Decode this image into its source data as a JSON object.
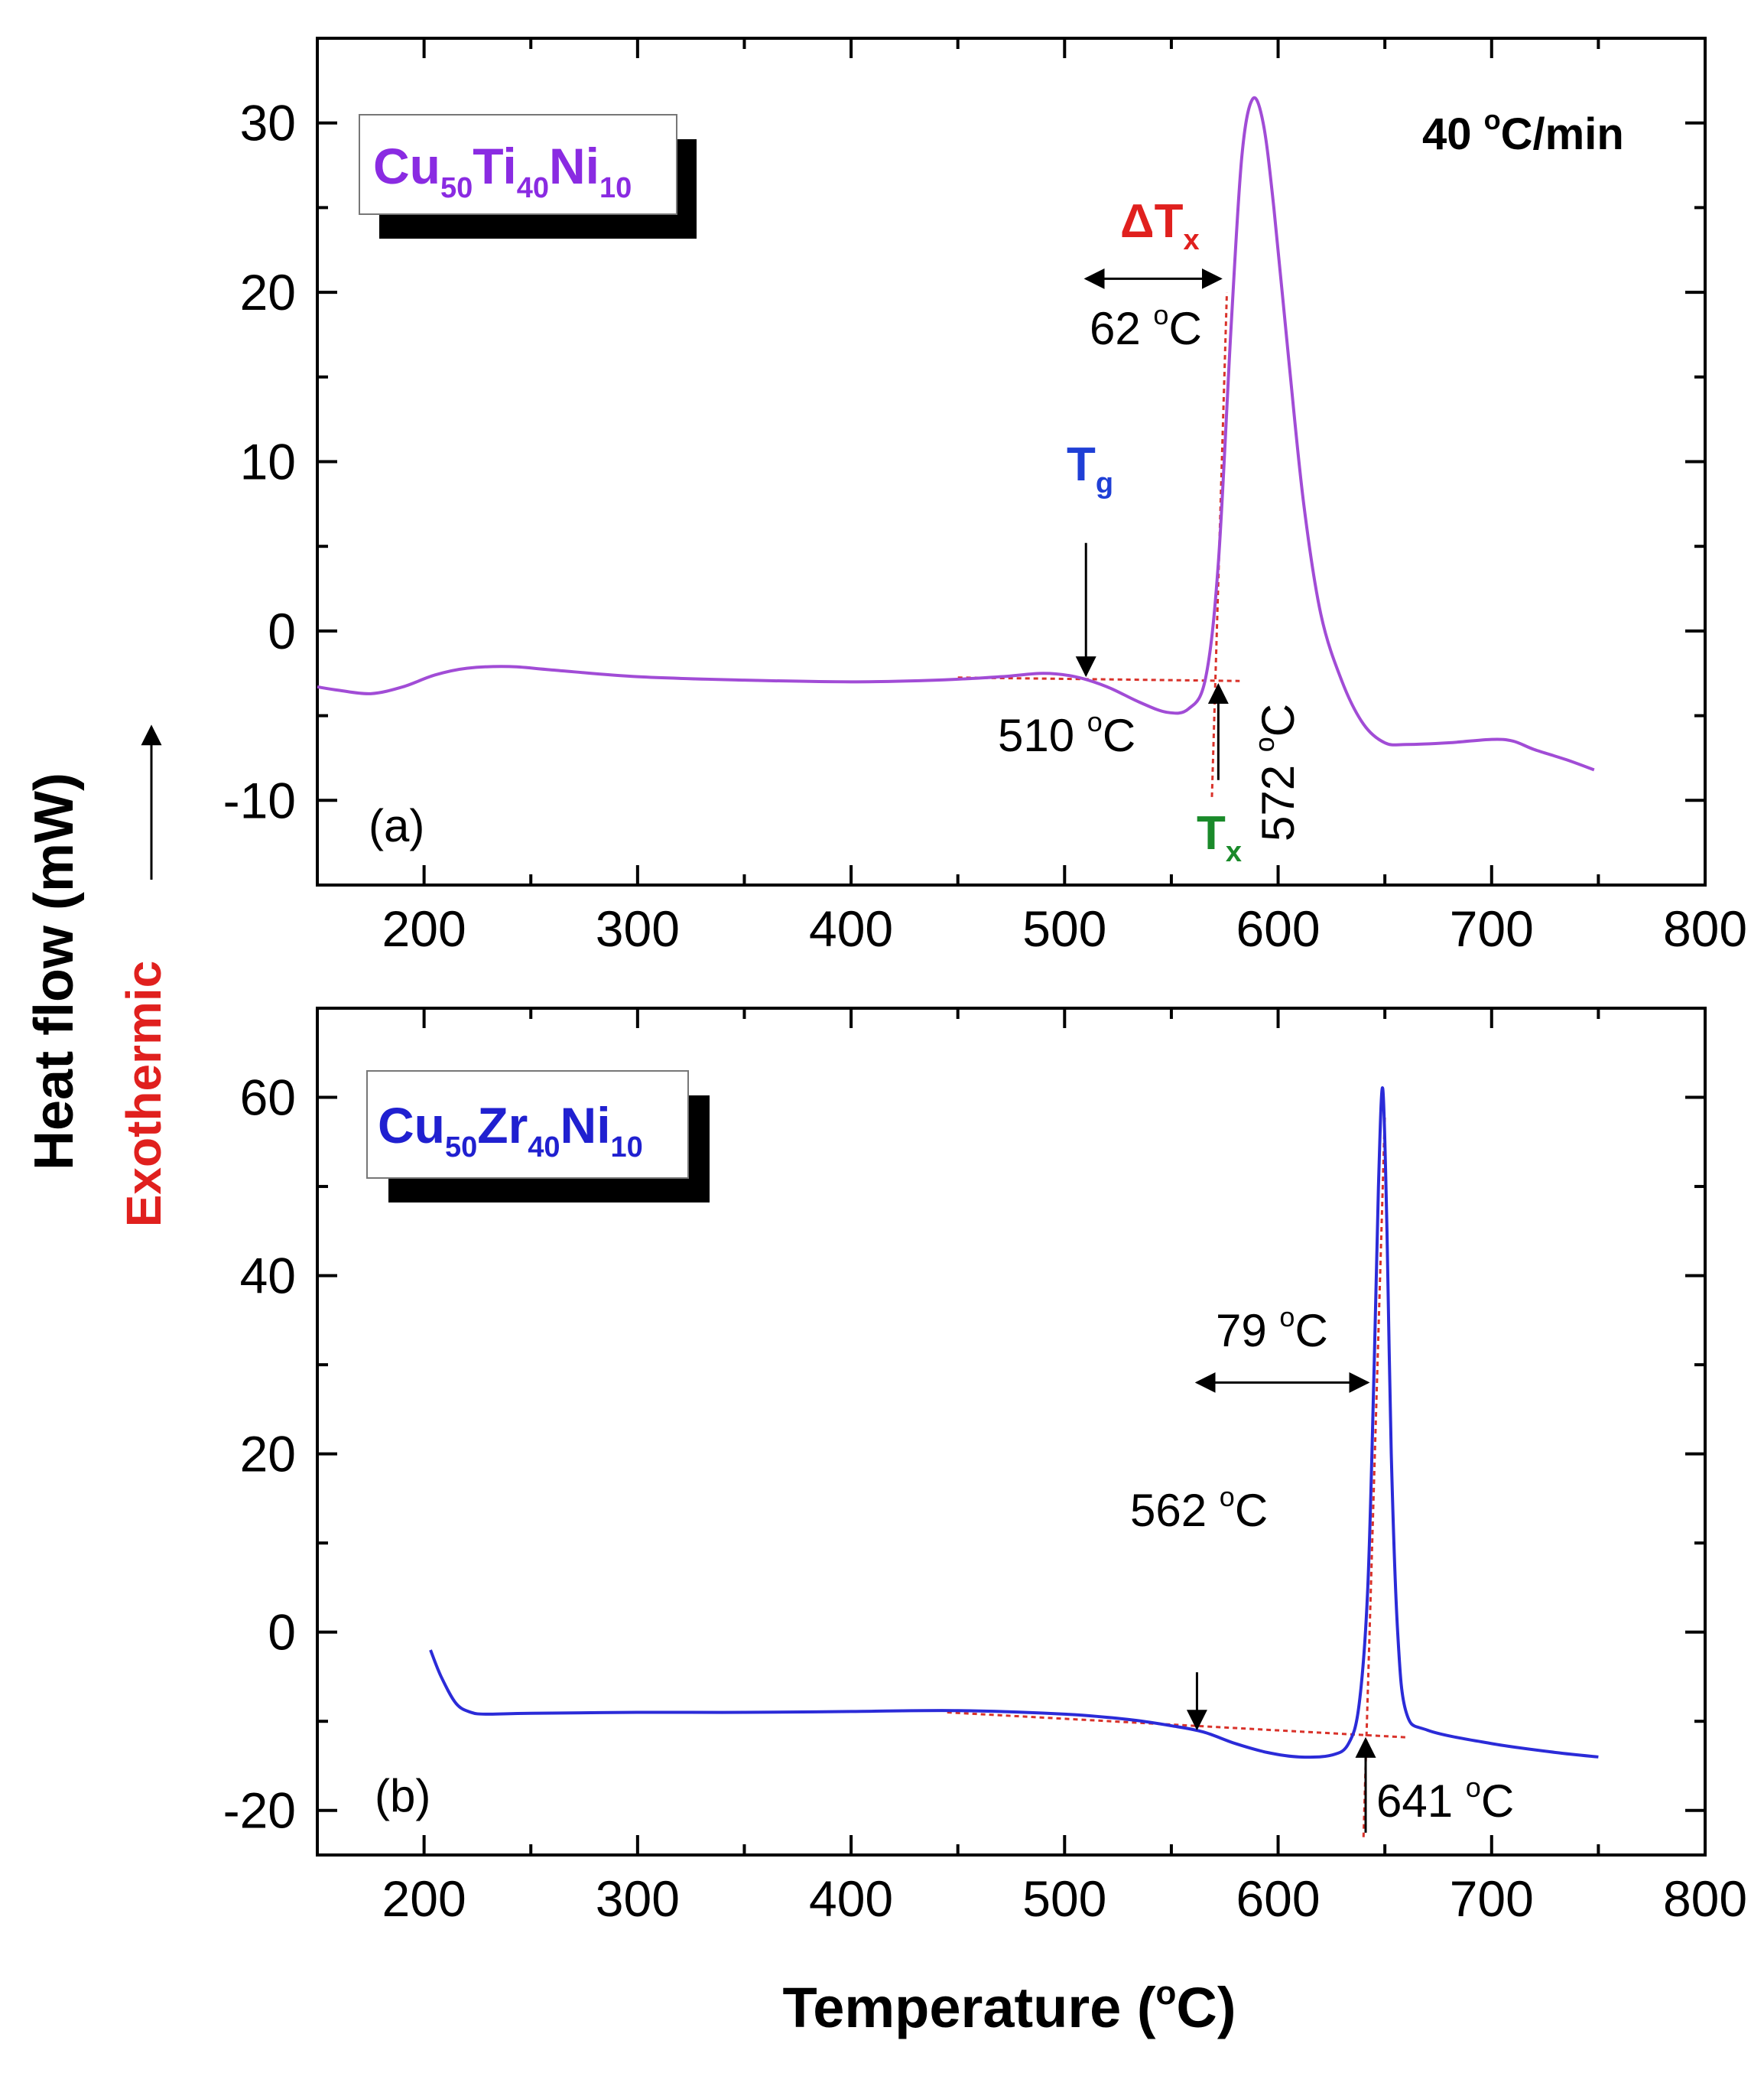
{
  "figure": {
    "ylabel_left": "Heat flow (mW)",
    "ylabel_exo": "Exothermic",
    "xlabel_main": "Temperature (",
    "xlabel_sup": "o",
    "xlabel_unit": "C)"
  },
  "colors": {
    "curve_a": "#a14cd6",
    "curve_b": "#2b2bd8",
    "baseline": "#d9322a",
    "tg_label": "#1f3fd6",
    "tx_label": "#1a8a2a",
    "dtx_label": "#e0201e",
    "exo_label": "#e0201e",
    "legend_a": "#8a2be2",
    "legend_b": "#2020d0"
  },
  "chart_data": [
    {
      "type": "line",
      "panel_label": "(a)",
      "rate_label": "40 °C/min",
      "rate_value": "40 ",
      "rate_sup": "o",
      "rate_unit": "C/min",
      "legend": {
        "base": [
          "Cu",
          "Ti",
          "Ni"
        ],
        "subs": [
          "50",
          "40",
          "10"
        ]
      },
      "xlim": [
        150,
        800
      ],
      "ylim": [
        -15,
        35
      ],
      "xticks": [
        200,
        300,
        400,
        500,
        600,
        700,
        800
      ],
      "yticks": [
        -10,
        0,
        10,
        20,
        30
      ],
      "x": [
        150,
        160,
        175,
        190,
        205,
        220,
        240,
        260,
        300,
        350,
        400,
        440,
        470,
        490,
        505,
        520,
        535,
        548,
        558,
        566,
        572,
        578,
        583,
        588,
        593,
        598,
        605,
        612,
        620,
        630,
        640,
        650,
        660,
        680,
        700,
        710,
        720,
        735,
        748
      ],
      "y": [
        -3.3,
        -3.5,
        -3.7,
        -3.3,
        -2.6,
        -2.2,
        -2.1,
        -2.3,
        -2.7,
        -2.9,
        -3.0,
        -2.9,
        -2.7,
        -2.5,
        -2.7,
        -3.3,
        -4.2,
        -4.8,
        -4.6,
        -2.8,
        4.0,
        18.0,
        28.0,
        31.4,
        30.0,
        25.0,
        16.0,
        7.5,
        1.0,
        -3.0,
        -5.5,
        -6.6,
        -6.7,
        -6.6,
        -6.4,
        -6.5,
        -7.0,
        -7.6,
        -8.2
      ],
      "baseline_x": [
        450,
        582
      ],
      "baseline_y": [
        -2.75,
        -2.95
      ],
      "annotations": {
        "tg_label": "T",
        "tg_sub": "g",
        "tg_value": "510 ",
        "tg_value_sup": "o",
        "tg_value_unit": "C",
        "tx_label": "T",
        "tx_sub": "x",
        "tx_value": "572 ",
        "tx_value_sup": "o",
        "tx_value_unit": "C",
        "dtx_label": "ΔT",
        "dtx_sub": "x",
        "dtx_value": "62 ",
        "dtx_value_sup": "o",
        "dtx_value_unit": "C"
      },
      "tg_temp": 510,
      "tx_temp": 572,
      "delta_tx": 62
    },
    {
      "type": "line",
      "panel_label": "(b)",
      "legend": {
        "base": [
          "Cu",
          "Zr",
          "Ni"
        ],
        "subs": [
          "50",
          "40",
          "10"
        ]
      },
      "xlim": [
        150,
        800
      ],
      "ylim": [
        -25,
        70
      ],
      "xticks": [
        200,
        300,
        400,
        500,
        600,
        700,
        800
      ],
      "yticks": [
        -20,
        0,
        20,
        40,
        60
      ],
      "x": [
        203,
        208,
        215,
        222,
        230,
        250,
        300,
        350,
        400,
        450,
        500,
        530,
        550,
        565,
        580,
        595,
        610,
        625,
        633,
        638,
        642,
        645,
        647,
        649,
        651,
        653,
        656,
        660,
        670,
        700,
        730,
        750
      ],
      "y": [
        -2.0,
        -5.0,
        -8.0,
        -9.0,
        -9.2,
        -9.1,
        -9.0,
        -9.0,
        -8.9,
        -8.8,
        -9.2,
        -9.8,
        -10.5,
        -11.2,
        -12.5,
        -13.5,
        -14.0,
        -13.8,
        -12.5,
        -8.0,
        5.0,
        30.0,
        50.0,
        61.0,
        45.0,
        20.0,
        0.0,
        -9.0,
        -11.0,
        -12.5,
        -13.5,
        -14.0
      ],
      "baseline_x": [
        445,
        660
      ],
      "baseline_y": [
        -9.0,
        -11.8
      ],
      "annotations": {
        "tg_value": "562 ",
        "tg_value_sup": "o",
        "tg_value_unit": "C",
        "tx_value": "641 ",
        "tx_value_sup": "o",
        "tx_value_unit": "C",
        "dtx_value": "79 ",
        "dtx_value_sup": "o",
        "dtx_value_unit": "C"
      },
      "tg_temp": 562,
      "tx_temp": 641,
      "delta_tx": 79
    }
  ]
}
